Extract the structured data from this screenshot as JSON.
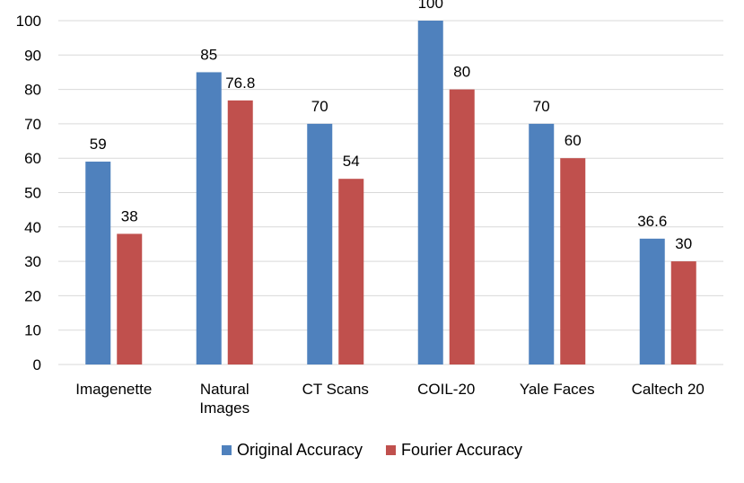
{
  "chart_data": {
    "type": "bar",
    "categories": [
      "Imagenette",
      "Natural Images",
      "CT Scans",
      "COIL-20",
      "Yale Faces",
      "Caltech 20"
    ],
    "category_lines": [
      [
        "Imagenette"
      ],
      [
        "Natural",
        "Images"
      ],
      [
        "CT Scans"
      ],
      [
        "COIL-20"
      ],
      [
        "Yale Faces"
      ],
      [
        "Caltech 20"
      ]
    ],
    "series": [
      {
        "name": "Original Accuracy",
        "values": [
          59,
          85,
          70,
          100,
          70,
          36.6
        ],
        "color": "#4F81BD",
        "labels": [
          "59",
          "85",
          "70",
          "100",
          "70",
          "36.6"
        ]
      },
      {
        "name": "Fourier Accuracy",
        "values": [
          38,
          76.8,
          54,
          80,
          60,
          30
        ],
        "color": "#C0504D",
        "labels": [
          "38",
          "76.8",
          "54",
          "80",
          "60",
          "30"
        ]
      }
    ],
    "ylim": [
      0,
      100
    ],
    "yticks": [
      "0",
      "10",
      "20",
      "30",
      "40",
      "50",
      "60",
      "70",
      "80",
      "90",
      "100"
    ],
    "grid": true,
    "gridColor": "#D9D9D9",
    "legend": "bottom"
  }
}
